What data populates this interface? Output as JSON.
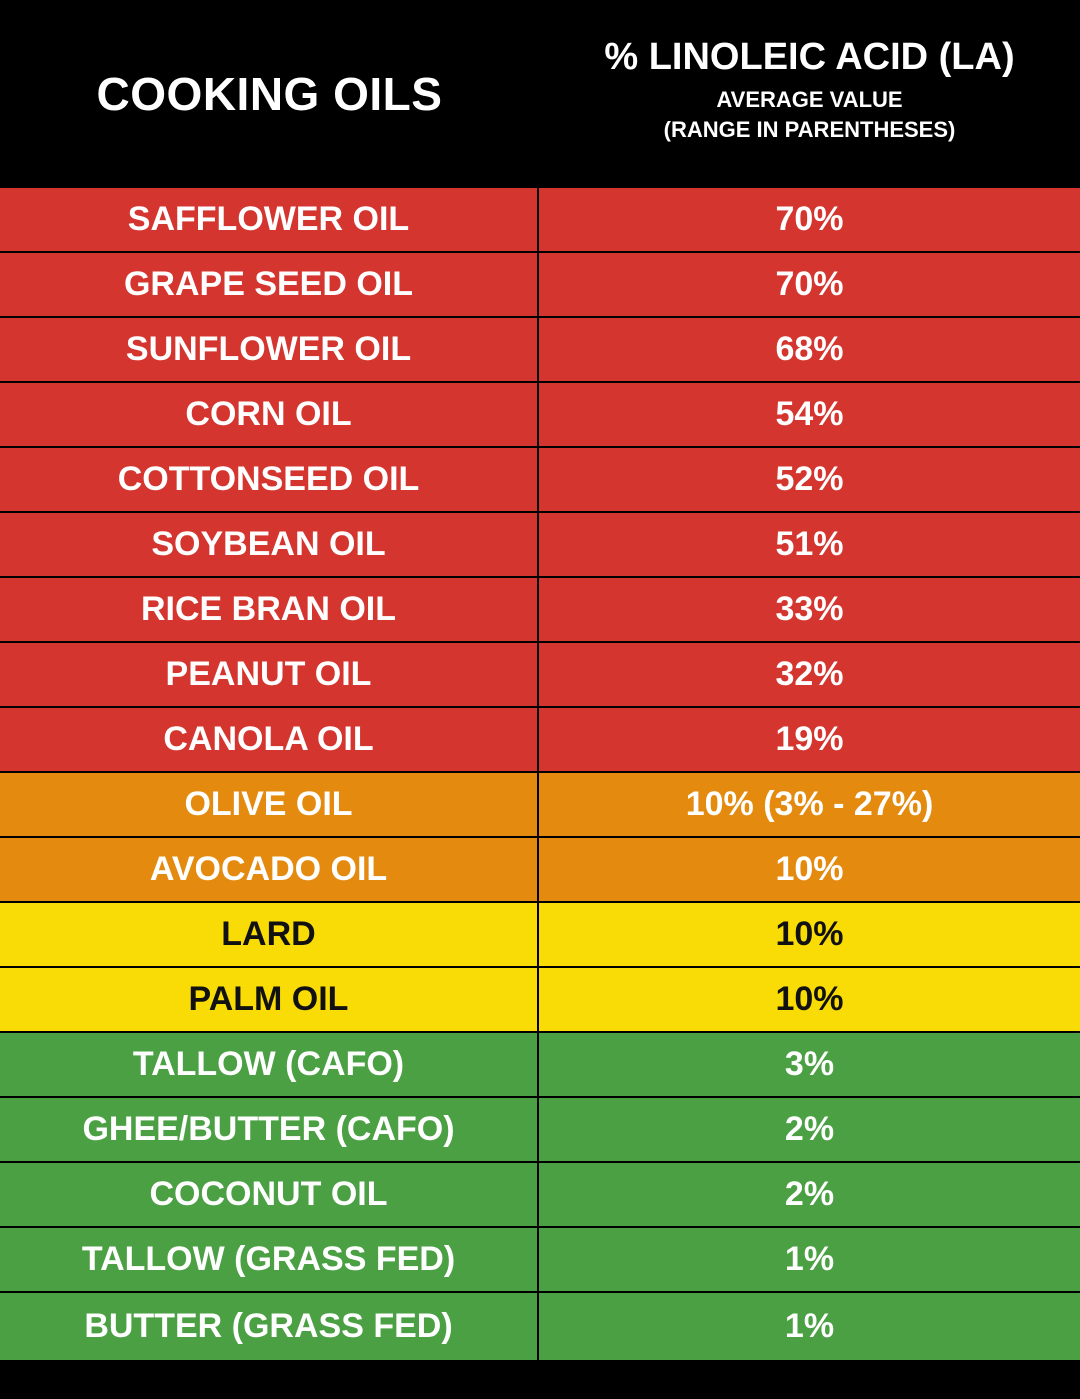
{
  "header": {
    "left_title": "COOKING OILS",
    "right_title": "% LINOLEIC ACID (LA)",
    "right_subtitle": "AVERAGE VALUE",
    "right_subtitle2": "(RANGE IN PARENTHESES)"
  },
  "colors": {
    "red": "#d5352f",
    "orange": "#e48b0f",
    "yellow": "#f9dc05",
    "green": "#4aa043",
    "header_bg": "#000000"
  },
  "chart_data": {
    "type": "table",
    "columns": [
      "COOKING OILS",
      "% LINOLEIC ACID (LA)"
    ],
    "rows": [
      {
        "name": "SAFFLOWER OIL",
        "value_label": "70%",
        "value": 70,
        "tier": "red"
      },
      {
        "name": "GRAPE SEED OIL",
        "value_label": "70%",
        "value": 70,
        "tier": "red"
      },
      {
        "name": "SUNFLOWER OIL",
        "value_label": "68%",
        "value": 68,
        "tier": "red"
      },
      {
        "name": "CORN OIL",
        "value_label": "54%",
        "value": 54,
        "tier": "red"
      },
      {
        "name": "COTTONSEED OIL",
        "value_label": "52%",
        "value": 52,
        "tier": "red"
      },
      {
        "name": "SOYBEAN OIL",
        "value_label": "51%",
        "value": 51,
        "tier": "red"
      },
      {
        "name": "RICE BRAN OIL",
        "value_label": "33%",
        "value": 33,
        "tier": "red"
      },
      {
        "name": "PEANUT OIL",
        "value_label": "32%",
        "value": 32,
        "tier": "red"
      },
      {
        "name": "CANOLA OIL",
        "value_label": "19%",
        "value": 19,
        "tier": "red"
      },
      {
        "name": "OLIVE OIL",
        "value_label": "10% (3% - 27%)",
        "value": 10,
        "range": [
          3,
          27
        ],
        "tier": "orange"
      },
      {
        "name": "AVOCADO OIL",
        "value_label": "10%",
        "value": 10,
        "tier": "orange"
      },
      {
        "name": "LARD",
        "value_label": "10%",
        "value": 10,
        "tier": "yellow"
      },
      {
        "name": "PALM OIL",
        "value_label": "10%",
        "value": 10,
        "tier": "yellow"
      },
      {
        "name": "TALLOW (CAFO)",
        "value_label": "3%",
        "value": 3,
        "tier": "green"
      },
      {
        "name": "GHEE/BUTTER (CAFO)",
        "value_label": "2%",
        "value": 2,
        "tier": "green"
      },
      {
        "name": "COCONUT OIL",
        "value_label": "2%",
        "value": 2,
        "tier": "green"
      },
      {
        "name": "TALLOW (GRASS FED)",
        "value_label": "1%",
        "value": 1,
        "tier": "green"
      },
      {
        "name": "BUTTER (GRASS FED)",
        "value_label": "1%",
        "value": 1,
        "tier": "green"
      }
    ]
  }
}
